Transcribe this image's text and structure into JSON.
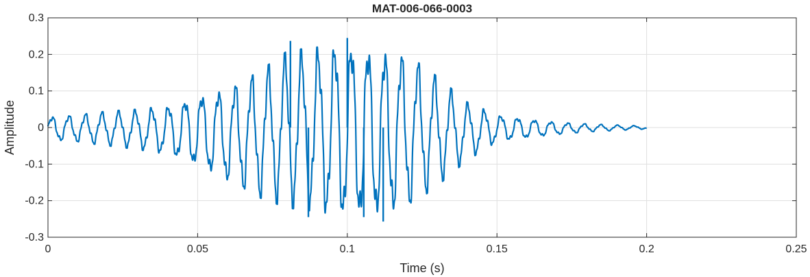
{
  "chart_data": {
    "type": "line",
    "title": "MAT-006-066-0003",
    "xlabel": "Time (s)",
    "ylabel": "Amplitude",
    "xlim": [
      0,
      0.25
    ],
    "ylim": [
      -0.3,
      0.3
    ],
    "grid": true,
    "x_ticks": [
      0,
      0.05,
      0.1,
      0.15,
      0.2,
      0.25
    ],
    "x_tick_labels": [
      "0",
      "0.05",
      "0.1",
      "0.15",
      "0.2",
      "0.25"
    ],
    "y_ticks": [
      0.3,
      0.2,
      0.1,
      0,
      -0.1,
      -0.2,
      -0.3
    ],
    "y_tick_labels": [
      "0.3",
      "0.2",
      "0.1",
      "0",
      "-0.1",
      "-0.2",
      "-0.3"
    ],
    "series": [
      {
        "color": "#0072BD",
        "x_start": 0,
        "x_end": 0.2,
        "envelope": {
          "t": [
            0,
            0.01,
            0.02,
            0.03,
            0.04,
            0.05,
            0.06,
            0.07,
            0.08,
            0.09,
            0.1,
            0.11,
            0.12,
            0.13,
            0.14,
            0.15,
            0.16,
            0.17,
            0.18,
            0.19,
            0.2
          ],
          "upper": [
            0.03,
            0.035,
            0.045,
            0.05,
            0.06,
            0.09,
            0.11,
            0.15,
            0.21,
            0.22,
            0.24,
            0.22,
            0.2,
            0.14,
            0.07,
            0.035,
            0.025,
            0.015,
            0.01,
            0.007,
            0.004
          ],
          "lower": [
            -0.035,
            -0.04,
            -0.05,
            -0.06,
            -0.075,
            -0.11,
            -0.15,
            -0.19,
            -0.22,
            -0.23,
            -0.26,
            -0.25,
            -0.22,
            -0.16,
            -0.09,
            -0.04,
            -0.03,
            -0.02,
            -0.012,
            -0.008,
            -0.004
          ]
        },
        "oscillation_freq_hz": 180,
        "peaks": [
          {
            "x": 0.081,
            "y": 0.237
          },
          {
            "x": 0.1,
            "y": 0.245
          },
          {
            "x": 0.087,
            "y": -0.245
          },
          {
            "x": 0.1055,
            "y": -0.245
          },
          {
            "x": 0.112,
            "y": -0.257
          }
        ]
      }
    ]
  }
}
